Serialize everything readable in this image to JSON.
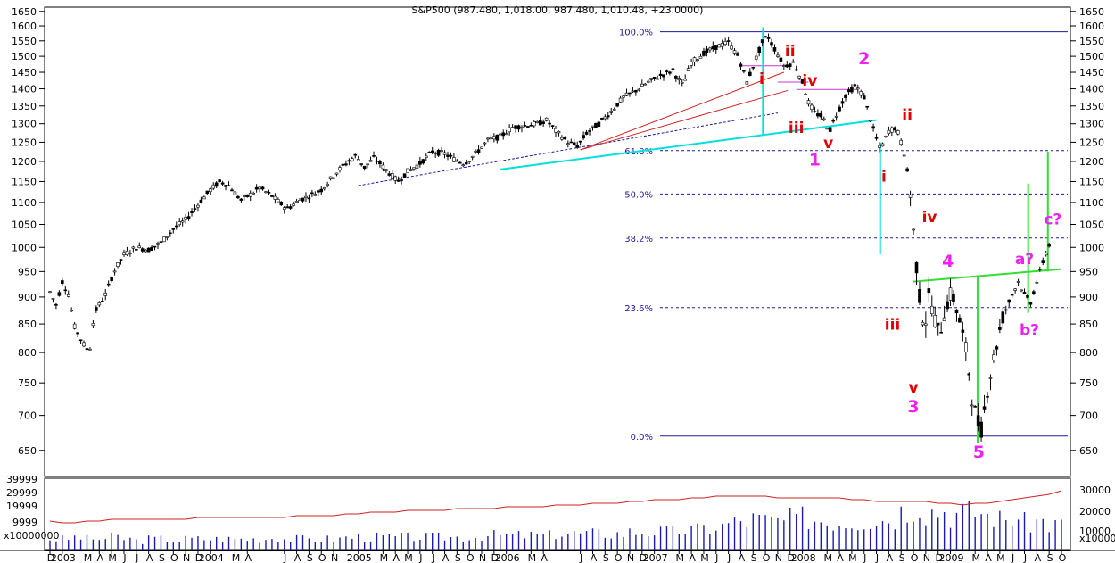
{
  "header": {
    "title": "S&P500 (987.480, 1,018.00, 987.480, 1,010.48, +23.0000)"
  },
  "chart_data": {
    "type": "candlestick",
    "ylim": [
      615,
      1665
    ],
    "y_scale": "log",
    "y_ticks": [
      650,
      700,
      750,
      800,
      850,
      900,
      950,
      1000,
      1050,
      1100,
      1150,
      1200,
      1250,
      1300,
      1350,
      1400,
      1450,
      1500,
      1550,
      1600,
      1650
    ],
    "x_start": "2002-12",
    "x_end": "2009-10",
    "x_axis_labels": [
      {
        "label": "D",
        "t": 0
      },
      {
        "label": "2003",
        "t": 1
      },
      {
        "label": "M",
        "t": 3
      },
      {
        "label": "A",
        "t": 4
      },
      {
        "label": "M",
        "t": 5
      },
      {
        "label": "J",
        "t": 6
      },
      {
        "label": "J",
        "t": 7
      },
      {
        "label": "A",
        "t": 8
      },
      {
        "label": "S",
        "t": 9
      },
      {
        "label": "O",
        "t": 10
      },
      {
        "label": "N",
        "t": 11
      },
      {
        "label": "D",
        "t": 12
      },
      {
        "label": "2004",
        "t": 13
      },
      {
        "label": "M",
        "t": 15
      },
      {
        "label": "A",
        "t": 16
      },
      {
        "label": "J",
        "t": 19
      },
      {
        "label": "A",
        "t": 20
      },
      {
        "label": "S",
        "t": 21
      },
      {
        "label": "O",
        "t": 22
      },
      {
        "label": "N",
        "t": 23
      },
      {
        "label": "2005",
        "t": 25
      },
      {
        "label": "M",
        "t": 27
      },
      {
        "label": "A",
        "t": 28
      },
      {
        "label": "M",
        "t": 29
      },
      {
        "label": "J",
        "t": 30
      },
      {
        "label": "J",
        "t": 31
      },
      {
        "label": "A",
        "t": 32
      },
      {
        "label": "S",
        "t": 33
      },
      {
        "label": "O",
        "t": 34
      },
      {
        "label": "N",
        "t": 35
      },
      {
        "label": "D",
        "t": 36
      },
      {
        "label": "2006",
        "t": 37
      },
      {
        "label": "M",
        "t": 39
      },
      {
        "label": "A",
        "t": 40
      },
      {
        "label": "J",
        "t": 43
      },
      {
        "label": "A",
        "t": 44
      },
      {
        "label": "S",
        "t": 45
      },
      {
        "label": "O",
        "t": 46
      },
      {
        "label": "N",
        "t": 47
      },
      {
        "label": "D",
        "t": 48
      },
      {
        "label": "2007",
        "t": 49
      },
      {
        "label": "M",
        "t": 51
      },
      {
        "label": "A",
        "t": 52
      },
      {
        "label": "M",
        "t": 53
      },
      {
        "label": "J",
        "t": 54
      },
      {
        "label": "J",
        "t": 55
      },
      {
        "label": "A",
        "t": 56
      },
      {
        "label": "S",
        "t": 57
      },
      {
        "label": "O",
        "t": 58
      },
      {
        "label": "N",
        "t": 59
      },
      {
        "label": "D",
        "t": 60
      },
      {
        "label": "2008",
        "t": 61
      },
      {
        "label": "M",
        "t": 63
      },
      {
        "label": "A",
        "t": 64
      },
      {
        "label": "M",
        "t": 65
      },
      {
        "label": "J",
        "t": 66
      },
      {
        "label": "J",
        "t": 67
      },
      {
        "label": "A",
        "t": 68
      },
      {
        "label": "S",
        "t": 69
      },
      {
        "label": "O",
        "t": 70
      },
      {
        "label": "N",
        "t": 71
      },
      {
        "label": "D",
        "t": 72
      },
      {
        "label": "2009",
        "t": 73
      },
      {
        "label": "M",
        "t": 75
      },
      {
        "label": "A",
        "t": 76
      },
      {
        "label": "M",
        "t": 77
      },
      {
        "label": "J",
        "t": 78
      },
      {
        "label": "J",
        "t": 79
      },
      {
        "label": "A",
        "t": 80
      },
      {
        "label": "S",
        "t": 81
      },
      {
        "label": "O",
        "t": 82
      }
    ],
    "price_path": [
      [
        0,
        910
      ],
      [
        0.5,
        885
      ],
      [
        1,
        930
      ],
      [
        1.5,
        905
      ],
      [
        2,
        845
      ],
      [
        2.7,
        815
      ],
      [
        3.2,
        800
      ],
      [
        3.6,
        870
      ],
      [
        4.5,
        905
      ],
      [
        5.2,
        950
      ],
      [
        6,
        985
      ],
      [
        7,
        1000
      ],
      [
        8,
        995
      ],
      [
        9,
        1010
      ],
      [
        10,
        1040
      ],
      [
        11,
        1060
      ],
      [
        12,
        1095
      ],
      [
        13,
        1130
      ],
      [
        13.8,
        1150
      ],
      [
        14.5,
        1140
      ],
      [
        15.5,
        1105
      ],
      [
        16.3,
        1120
      ],
      [
        17,
        1135
      ],
      [
        18,
        1115
      ],
      [
        19.2,
        1085
      ],
      [
        20.2,
        1105
      ],
      [
        21,
        1115
      ],
      [
        22,
        1130
      ],
      [
        23.3,
        1175
      ],
      [
        24.2,
        1200
      ],
      [
        24.8,
        1215
      ],
      [
        25.5,
        1185
      ],
      [
        26.3,
        1210
      ],
      [
        27.2,
        1180
      ],
      [
        28.2,
        1150
      ],
      [
        29,
        1175
      ],
      [
        30,
        1195
      ],
      [
        31,
        1225
      ],
      [
        32,
        1220
      ],
      [
        32.8,
        1205
      ],
      [
        33.6,
        1195
      ],
      [
        34.5,
        1220
      ],
      [
        35.5,
        1255
      ],
      [
        36.5,
        1265
      ],
      [
        37.5,
        1290
      ],
      [
        38.5,
        1295
      ],
      [
        39.5,
        1300
      ],
      [
        40.3,
        1310
      ],
      [
        41,
        1280
      ],
      [
        42,
        1250
      ],
      [
        42.8,
        1240
      ],
      [
        43.5,
        1275
      ],
      [
        44.5,
        1300
      ],
      [
        45.5,
        1335
      ],
      [
        46.5,
        1375
      ],
      [
        47.5,
        1395
      ],
      [
        48.5,
        1420
      ],
      [
        49.5,
        1440
      ],
      [
        50.5,
        1455
      ],
      [
        51.3,
        1410
      ],
      [
        52,
        1480
      ],
      [
        53,
        1510
      ],
      [
        54,
        1530
      ],
      [
        55,
        1545
      ],
      [
        55.8,
        1500
      ],
      [
        56.5,
        1420
      ],
      [
        57.3,
        1500
      ],
      [
        57.8,
        1550
      ],
      [
        58.2,
        1565
      ],
      [
        58.8,
        1520
      ],
      [
        59.5,
        1470
      ],
      [
        60.3,
        1480
      ],
      [
        61,
        1420
      ],
      [
        61.5,
        1360
      ],
      [
        62,
        1330
      ],
      [
        62.6,
        1320
      ],
      [
        63.2,
        1280
      ],
      [
        63.8,
        1330
      ],
      [
        64.5,
        1380
      ],
      [
        65.3,
        1410
      ],
      [
        66,
        1375
      ],
      [
        66.7,
        1290
      ],
      [
        67.3,
        1230
      ],
      [
        68,
        1280
      ],
      [
        68.6,
        1290
      ],
      [
        69.2,
        1230
      ],
      [
        69.7,
        1140
      ],
      [
        70.1,
        1000
      ],
      [
        70.5,
        900
      ],
      [
        70.9,
        840
      ],
      [
        71.3,
        910
      ],
      [
        71.6,
        870
      ],
      [
        72.1,
        830
      ],
      [
        72.6,
        880
      ],
      [
        73.1,
        910
      ],
      [
        73.7,
        860
      ],
      [
        74.3,
        800
      ],
      [
        74.8,
        720
      ],
      [
        75.2,
        690
      ],
      [
        75.5,
        680
      ],
      [
        76,
        740
      ],
      [
        76.6,
        800
      ],
      [
        77.2,
        860
      ],
      [
        77.9,
        900
      ],
      [
        78.5,
        930
      ],
      [
        79,
        905
      ],
      [
        79.5,
        890
      ],
      [
        80,
        930
      ],
      [
        80.5,
        970
      ],
      [
        80.9,
        1000
      ],
      [
        81.2,
        1015
      ]
    ],
    "fib_levels": [
      {
        "label": "100.0%",
        "value": 1580
      },
      {
        "label": "61.8%",
        "value": 1228
      },
      {
        "label": "50.0%",
        "value": 1120
      },
      {
        "label": "38.2%",
        "value": 1020
      },
      {
        "label": "23.6%",
        "value": 880
      },
      {
        "label": "0.0%",
        "value": 670
      }
    ],
    "wave_labels": [
      {
        "text": "i",
        "t": 57.7,
        "v": 1415,
        "color": "#e00000"
      },
      {
        "text": "ii",
        "t": 60.0,
        "v": 1500,
        "color": "#e00000"
      },
      {
        "text": "iii",
        "t": 60.5,
        "v": 1275,
        "color": "#e00000"
      },
      {
        "text": "iv",
        "t": 61.6,
        "v": 1410,
        "color": "#e00000"
      },
      {
        "text": "v",
        "t": 63.1,
        "v": 1235,
        "color": "#e00000"
      },
      {
        "text": "1",
        "t": 62.0,
        "v": 1190,
        "color": "#ee22ee"
      },
      {
        "text": "2",
        "t": 66.0,
        "v": 1475,
        "color": "#ee22ee"
      },
      {
        "text": "i",
        "t": 67.6,
        "v": 1150,
        "color": "#e00000"
      },
      {
        "text": "ii",
        "t": 69.5,
        "v": 1310,
        "color": "#e00000"
      },
      {
        "text": "iv",
        "t": 71.3,
        "v": 1055,
        "color": "#e00000"
      },
      {
        "text": "4",
        "t": 72.8,
        "v": 960,
        "color": "#ee22ee"
      },
      {
        "text": "iii",
        "t": 68.3,
        "v": 840,
        "color": "#e00000"
      },
      {
        "text": "v",
        "t": 70.0,
        "v": 735,
        "color": "#e00000"
      },
      {
        "text": "3",
        "t": 70.0,
        "v": 705,
        "color": "#ee22ee"
      },
      {
        "text": "5",
        "t": 75.3,
        "v": 640,
        "color": "#ee22ee"
      },
      {
        "text": "a?",
        "t": 79.0,
        "v": 965,
        "color": "#ee22ee"
      },
      {
        "text": "b?",
        "t": 79.4,
        "v": 830,
        "color": "#ee22ee"
      },
      {
        "text": "c?",
        "t": 81.3,
        "v": 1050,
        "color": "#ee22ee"
      }
    ],
    "volume_axis_left": [
      "39999",
      "29999",
      "19999",
      "9999",
      "x10000000"
    ],
    "volume_axis_right": [
      "30000",
      "20000",
      "10000",
      "x1000000"
    ],
    "volume": [
      6,
      6,
      7,
      6,
      6,
      7,
      6,
      5,
      6,
      6,
      5,
      6,
      6,
      6,
      6,
      6,
      6,
      6,
      7,
      6,
      6,
      6,
      6,
      6,
      7,
      7,
      7,
      7,
      7,
      7,
      7,
      7,
      7,
      7,
      7,
      8,
      8,
      8,
      8,
      8,
      8,
      9,
      9,
      9,
      9,
      9,
      9,
      10,
      10,
      10,
      10,
      11,
      11,
      12,
      13,
      15,
      16,
      17,
      16,
      16,
      17,
      18,
      17,
      16,
      16,
      16,
      17,
      17,
      18,
      22,
      26,
      22,
      22,
      20,
      21,
      21,
      19,
      17,
      18,
      15,
      16,
      14,
      15
    ],
    "volume_avg": [
      16,
      15,
      15,
      16,
      16,
      17,
      17,
      17,
      17,
      17,
      17,
      17,
      18,
      18,
      18,
      18,
      18,
      18,
      18,
      18,
      19,
      19,
      19,
      19,
      20,
      20,
      21,
      21,
      21,
      22,
      22,
      22,
      22,
      23,
      23,
      23,
      23,
      24,
      24,
      24,
      24,
      25,
      25,
      25,
      26,
      26,
      26,
      27,
      27,
      28,
      28,
      28,
      29,
      29,
      30,
      30,
      30,
      30,
      30,
      29,
      29,
      29,
      29,
      29,
      29,
      28,
      28,
      27,
      27,
      27,
      27,
      27,
      26,
      26,
      25,
      26,
      26,
      27,
      28,
      29,
      30,
      31,
      33
    ],
    "colors": {
      "candle": "#000000",
      "volume_bar": "#1a1ab4",
      "volume_avg": "#cc2222",
      "fib_line": "#1a1aa0",
      "cyan": "#00e0e0",
      "green": "#33dd33",
      "trend_red": "#cc2222",
      "support_blue": "#1a1aa0",
      "magenta_h": "#cc33cc"
    }
  }
}
